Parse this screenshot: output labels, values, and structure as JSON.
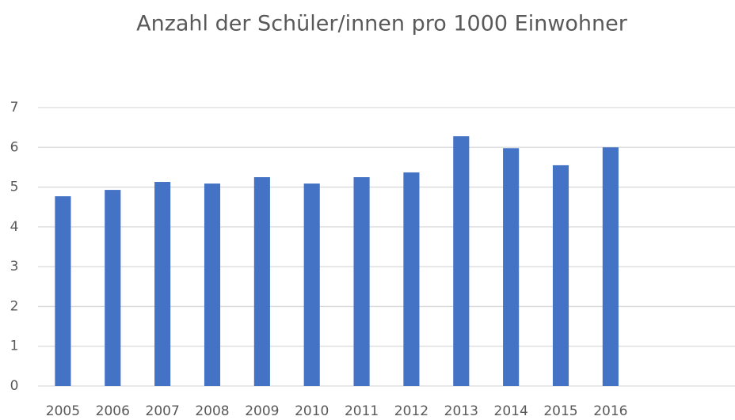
{
  "chart_data": {
    "type": "bar",
    "title": "Anzahl der Schüler/innen pro 1000 Einwohner",
    "categories": [
      "2005",
      "2006",
      "2007",
      "2008",
      "2009",
      "2010",
      "2011",
      "2012",
      "2013",
      "2014",
      "2015",
      "2016",
      null,
      null
    ],
    "values": [
      4.77,
      4.93,
      5.13,
      5.09,
      5.25,
      5.09,
      5.25,
      5.37,
      6.28,
      5.98,
      5.55,
      6.0,
      null,
      null
    ],
    "color": "#4472c4",
    "ylim": [
      0,
      7
    ],
    "yticks": [
      0,
      1,
      2,
      3,
      4,
      5,
      6,
      7
    ],
    "grid": true
  }
}
